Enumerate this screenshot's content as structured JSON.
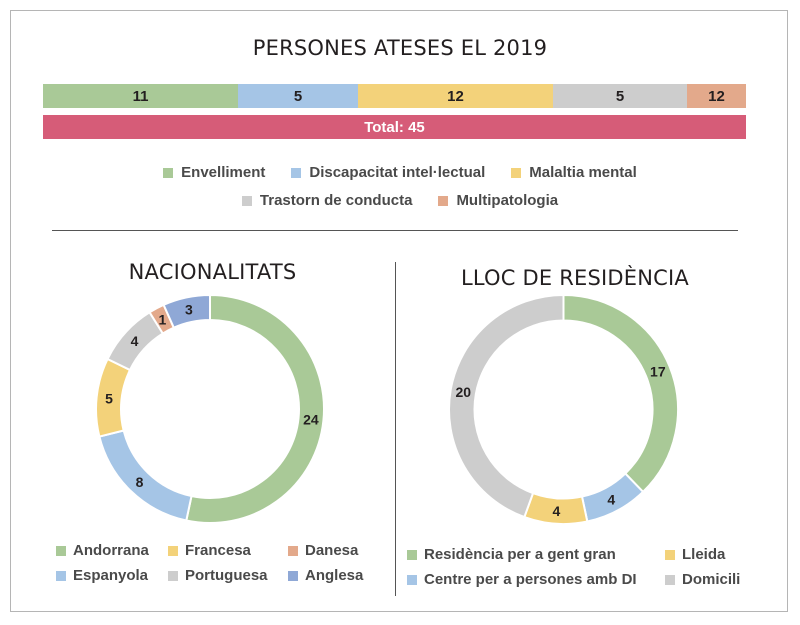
{
  "title": "PERSONES ATESES EL 2019",
  "chart_data": [
    {
      "type": "bar",
      "orientation": "horizontal-stacked",
      "categories": [
        "Envelliment",
        "Discapacitat intel·lectual",
        "Malaltia mental",
        "Trastorn de conducta",
        "Multipatologia"
      ],
      "values": [
        11,
        5,
        12,
        5,
        12
      ],
      "colors": [
        "#a9c997",
        "#a5c5e6",
        "#f3d27a",
        "#cdcdcd",
        "#e3a98b"
      ],
      "total_label": "Total: 45",
      "total_color": "#d65c78"
    },
    {
      "type": "pie",
      "subtype": "donut",
      "title": "NACIONALITATS",
      "categories": [
        "Andorrana",
        "Espanyola",
        "Francesa",
        "Portuguesa",
        "Danesa",
        "Anglesa"
      ],
      "values": [
        24,
        8,
        5,
        4,
        1,
        3
      ],
      "colors": [
        "#a9c997",
        "#a5c5e6",
        "#f3d27a",
        "#cdcdcd",
        "#e3a98b",
        "#8fa8d6"
      ]
    },
    {
      "type": "pie",
      "subtype": "donut",
      "title": "LLOC DE RESIDÈNCIA",
      "categories": [
        "Residència per a gent gran",
        "Centre per a persones amb DI",
        "Lleida",
        "Domicili"
      ],
      "values": [
        17,
        4,
        4,
        20
      ],
      "colors": [
        "#a9c997",
        "#a5c5e6",
        "#f3d27a",
        "#cdcdcd"
      ]
    }
  ],
  "legends": {
    "top_row1": [
      0,
      1,
      2
    ],
    "top_row2": [
      3,
      4
    ],
    "nat_order": [
      0,
      2,
      4,
      1,
      3,
      5
    ],
    "res_order": [
      0,
      2,
      1,
      3
    ]
  }
}
